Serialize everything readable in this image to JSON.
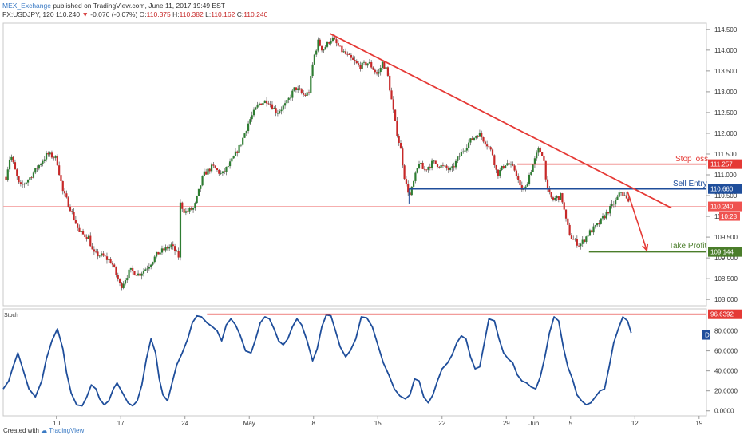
{
  "header": {
    "publisher": "MEX_Exchange",
    "published_text": "published on TradingView.com, June 11, 2017 19:49 EST",
    "symbol": "FX:USDJPY, 120",
    "last": "110.240",
    "arrow": "▼",
    "change": "-0.076 (-0.07%)",
    "open_label": "O:",
    "open": "110.375",
    "high_label": "H:",
    "high": "110.382",
    "low_label": "L:",
    "low": "110.162",
    "close_label": "C:",
    "close": "110.240"
  },
  "footer": {
    "created_with": "Created with",
    "logo_text": "TradingView"
  },
  "colors": {
    "up": "#2e7d32",
    "down": "#c62828",
    "wick": "#555555",
    "trend": "#e53935",
    "sell": "#1f4e9b",
    "profit": "#4a7d2a",
    "stoch": "#1f4e9b"
  },
  "annotations": {
    "stop_loss": "Stop loss",
    "sell_entry": "Sell Entry",
    "take_profit": "Take Profit"
  },
  "price_badges": {
    "stop_loss": "111.257",
    "sell_entry": "110.660",
    "last": "110.240",
    "countdown": "10:28",
    "take_profit": "109.144",
    "stoch_level": "96.6392",
    "stoch_d": "D"
  },
  "chart_data": [
    {
      "type": "candlestick",
      "title": "FX:USDJPY, 120",
      "yticks": [
        "114.500",
        "114.000",
        "113.500",
        "113.000",
        "112.500",
        "112.000",
        "111.500",
        "111.000",
        "110.500",
        "110.000",
        "109.500",
        "109.000",
        "108.500",
        "108.000"
      ],
      "ylim": [
        107.85,
        114.65
      ],
      "xticks": [
        {
          "label": "10",
          "x": 10
        },
        {
          "label": "17",
          "x": 17
        },
        {
          "label": "24",
          "x": 24
        },
        {
          "label": "May",
          "x": 31
        },
        {
          "label": "8",
          "x": 38
        },
        {
          "label": "15",
          "x": 45
        },
        {
          "label": "22",
          "x": 52
        },
        {
          "label": "29",
          "x": 59
        },
        {
          "label": "Jun",
          "x": 62
        },
        {
          "label": "5",
          "x": 66
        },
        {
          "label": "12",
          "x": 73
        },
        {
          "label": "19",
          "x": 80
        }
      ],
      "xlim": [
        4.2,
        80.8
      ],
      "price_path": [
        {
          "x": 4.5,
          "p": 110.95
        },
        {
          "x": 5.0,
          "p": 111.5
        },
        {
          "x": 6.0,
          "p": 110.7
        },
        {
          "x": 7.0,
          "p": 110.9
        },
        {
          "x": 8.0,
          "p": 111.2
        },
        {
          "x": 9.0,
          "p": 111.5
        },
        {
          "x": 10.0,
          "p": 111.4
        },
        {
          "x": 10.7,
          "p": 110.6
        },
        {
          "x": 11.5,
          "p": 110.2
        },
        {
          "x": 12.0,
          "p": 109.9
        },
        {
          "x": 12.5,
          "p": 109.6
        },
        {
          "x": 13.5,
          "p": 109.5
        },
        {
          "x": 14.0,
          "p": 109.1
        },
        {
          "x": 15.0,
          "p": 109.05
        },
        {
          "x": 16.0,
          "p": 108.9
        },
        {
          "x": 17.0,
          "p": 108.3
        },
        {
          "x": 18.0,
          "p": 108.7
        },
        {
          "x": 19.0,
          "p": 108.6
        },
        {
          "x": 20.0,
          "p": 108.8
        },
        {
          "x": 21.0,
          "p": 109.1
        },
        {
          "x": 22.5,
          "p": 109.3
        },
        {
          "x": 23.4,
          "p": 109.0
        },
        {
          "x": 23.5,
          "p": 110.3
        },
        {
          "x": 24.0,
          "p": 110.1
        },
        {
          "x": 25.0,
          "p": 110.2
        },
        {
          "x": 26.0,
          "p": 111.0
        },
        {
          "x": 27.0,
          "p": 111.2
        },
        {
          "x": 28.0,
          "p": 111.0
        },
        {
          "x": 29.0,
          "p": 111.3
        },
        {
          "x": 30.0,
          "p": 111.7
        },
        {
          "x": 31.0,
          "p": 112.3
        },
        {
          "x": 32.0,
          "p": 112.7
        },
        {
          "x": 33.0,
          "p": 112.8
        },
        {
          "x": 34.0,
          "p": 112.5
        },
        {
          "x": 35.0,
          "p": 112.7
        },
        {
          "x": 36.0,
          "p": 113.1
        },
        {
          "x": 37.0,
          "p": 112.9
        },
        {
          "x": 37.5,
          "p": 113.0
        },
        {
          "x": 38.0,
          "p": 113.8
        },
        {
          "x": 38.5,
          "p": 114.2
        },
        {
          "x": 39.0,
          "p": 114.0
        },
        {
          "x": 40.0,
          "p": 114.3
        },
        {
          "x": 41.0,
          "p": 114.0
        },
        {
          "x": 42.0,
          "p": 113.8
        },
        {
          "x": 43.0,
          "p": 113.6
        },
        {
          "x": 44.0,
          "p": 113.7
        },
        {
          "x": 45.0,
          "p": 113.4
        },
        {
          "x": 45.5,
          "p": 113.7
        },
        {
          "x": 46.0,
          "p": 113.5
        },
        {
          "x": 46.5,
          "p": 112.8
        },
        {
          "x": 47.0,
          "p": 112.1
        },
        {
          "x": 47.5,
          "p": 111.6
        },
        {
          "x": 48.0,
          "p": 110.8
        },
        {
          "x": 48.5,
          "p": 110.5
        },
        {
          "x": 49.0,
          "p": 110.9
        },
        {
          "x": 49.5,
          "p": 111.3
        },
        {
          "x": 50.0,
          "p": 111.1
        },
        {
          "x": 51.0,
          "p": 111.3
        },
        {
          "x": 52.0,
          "p": 111.2
        },
        {
          "x": 53.0,
          "p": 111.1
        },
        {
          "x": 54.0,
          "p": 111.5
        },
        {
          "x": 55.0,
          "p": 111.8
        },
        {
          "x": 56.0,
          "p": 112.0
        },
        {
          "x": 57.0,
          "p": 111.7
        },
        {
          "x": 57.5,
          "p": 111.5
        },
        {
          "x": 58.0,
          "p": 111.0
        },
        {
          "x": 59.0,
          "p": 111.3
        },
        {
          "x": 60.0,
          "p": 111.1
        },
        {
          "x": 60.5,
          "p": 110.7
        },
        {
          "x": 61.0,
          "p": 110.6
        },
        {
          "x": 61.5,
          "p": 111.0
        },
        {
          "x": 62.0,
          "p": 111.3
        },
        {
          "x": 62.5,
          "p": 111.6
        },
        {
          "x": 63.0,
          "p": 111.5
        },
        {
          "x": 63.5,
          "p": 110.6
        },
        {
          "x": 64.0,
          "p": 110.4
        },
        {
          "x": 65.0,
          "p": 110.5
        },
        {
          "x": 65.5,
          "p": 109.9
        },
        {
          "x": 66.0,
          "p": 109.5
        },
        {
          "x": 67.0,
          "p": 109.3
        },
        {
          "x": 68.0,
          "p": 109.6
        },
        {
          "x": 69.0,
          "p": 109.8
        },
        {
          "x": 70.0,
          "p": 110.1
        },
        {
          "x": 71.0,
          "p": 110.4
        },
        {
          "x": 71.5,
          "p": 110.6
        },
        {
          "x": 72.0,
          "p": 110.45
        },
        {
          "x": 72.5,
          "p": 110.24
        }
      ],
      "trendline": {
        "from": {
          "x": 39.8,
          "p": 114.4
        },
        "to": {
          "x": 77.0,
          "p": 110.2
        }
      },
      "arrow": {
        "from": {
          "x": 72.2,
          "p": 110.6
        },
        "to": {
          "x": 74.3,
          "p": 109.18
        }
      },
      "levels": {
        "stop_loss": {
          "value": 111.257,
          "from_x": 60.2,
          "to_x": 80.8
        },
        "sell_entry": {
          "value": 110.66,
          "from_x": 48.4,
          "to_x": 80.8
        },
        "take_profit": {
          "value": 109.144,
          "from_x": 68.0,
          "to_x": 80.8
        },
        "last_price": {
          "value": 110.24
        }
      }
    },
    {
      "type": "line",
      "title": "Stoch",
      "yticks": [
        "80.0000",
        "60.0000",
        "40.0000",
        "20.0000",
        "0.0000"
      ],
      "ylim": [
        -5,
        102
      ],
      "values_x": [
        4.2,
        4.8,
        5.2,
        5.8,
        6.4,
        7.0,
        7.7,
        8.4,
        8.9,
        9.5,
        10.1,
        10.7,
        11.1,
        11.6,
        12.2,
        12.8,
        13.3,
        13.8,
        14.3,
        14.7,
        15.2,
        15.7,
        16.2,
        16.6,
        17.2,
        17.8,
        18.3,
        18.8,
        19.3,
        19.8,
        20.3,
        20.8,
        21.2,
        21.6,
        22.1,
        22.6,
        23.1,
        23.7,
        24.3,
        24.8,
        25.3,
        25.8,
        26.4,
        27.0,
        27.5,
        28.0,
        28.5,
        29.0,
        29.5,
        30.0,
        30.6,
        31.2,
        31.7,
        32.2,
        32.7,
        33.2,
        33.7,
        34.2,
        34.7,
        35.2,
        35.7,
        36.2,
        36.7,
        37.3,
        37.9,
        38.4,
        38.9,
        39.4,
        39.9,
        40.4,
        40.9,
        41.5,
        42.0,
        42.6,
        43.2,
        43.8,
        44.4,
        45.0,
        45.6,
        46.2,
        46.8,
        47.4,
        48.0,
        48.5,
        49.0,
        49.5,
        50.0,
        50.5,
        51.0,
        51.5,
        52.0,
        52.6,
        53.1,
        53.6,
        54.1,
        54.6,
        55.1,
        55.6,
        56.1,
        56.6,
        57.1,
        57.7,
        58.2,
        58.7,
        59.2,
        59.7,
        60.2,
        60.7,
        61.2,
        61.7,
        62.2,
        62.7,
        63.2,
        63.7,
        64.2,
        64.7,
        65.2,
        65.7,
        66.2,
        66.7,
        67.2,
        67.7,
        68.2,
        68.7,
        69.2,
        69.7,
        70.2,
        70.7,
        71.2,
        71.7,
        72.2,
        72.6
      ],
      "values": [
        22,
        30,
        42,
        58,
        40,
        22,
        14,
        30,
        52,
        70,
        82,
        62,
        38,
        18,
        6,
        5,
        14,
        26,
        22,
        12,
        6,
        10,
        22,
        28,
        18,
        8,
        5,
        10,
        26,
        52,
        72,
        58,
        32,
        16,
        10,
        28,
        46,
        58,
        72,
        88,
        95,
        94,
        88,
        84,
        80,
        70,
        86,
        92,
        86,
        76,
        60,
        58,
        72,
        88,
        94,
        92,
        82,
        70,
        66,
        72,
        84,
        92,
        86,
        70,
        50,
        62,
        84,
        96,
        95,
        80,
        64,
        54,
        60,
        72,
        94,
        93,
        84,
        66,
        48,
        36,
        22,
        15,
        12,
        16,
        32,
        30,
        14,
        8,
        16,
        30,
        42,
        48,
        56,
        68,
        75,
        72,
        54,
        42,
        44,
        68,
        92,
        90,
        72,
        58,
        52,
        48,
        36,
        30,
        28,
        24,
        22,
        34,
        54,
        78,
        94,
        90,
        64,
        44,
        32,
        16,
        10,
        6,
        8,
        14,
        20,
        22,
        44,
        68,
        82,
        94,
        90,
        78
      ]
    }
  ]
}
